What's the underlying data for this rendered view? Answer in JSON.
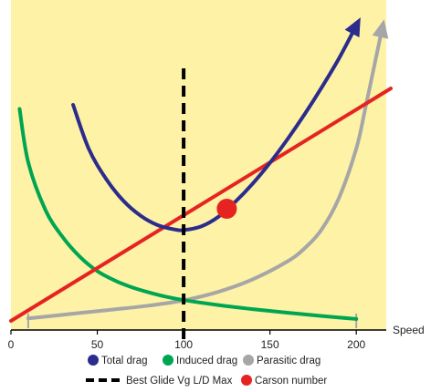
{
  "chart_data": {
    "type": "line",
    "title": "",
    "xlabel": "Speed",
    "ylabel": "",
    "xlim": [
      0,
      220
    ],
    "ylim": [
      0,
      100
    ],
    "x_ticks": [
      0,
      50,
      100,
      150,
      200
    ],
    "grid": false,
    "background": "#fdf2a6",
    "legend_position": "bottom",
    "series": [
      {
        "name": "Total drag",
        "color": "#2b2c8c",
        "arrow_end": true,
        "x": [
          36,
          45,
          55,
          65,
          75,
          85,
          95,
          100,
          110,
          120,
          130,
          140,
          150,
          160,
          170,
          180,
          190,
          200
        ],
        "y": [
          79,
          63,
          52,
          44,
          38.5,
          35,
          33.4,
          33.2,
          34.5,
          38,
          43.6,
          50.2,
          57.8,
          66.3,
          75.5,
          85.4,
          96,
          108
        ]
      },
      {
        "name": "Induced drag",
        "color": "#00a552",
        "x": [
          5,
          10,
          20,
          30,
          40,
          50,
          60,
          70,
          80,
          90,
          100,
          120,
          140,
          160,
          180,
          200
        ],
        "y": [
          77.5,
          58,
          40.5,
          30.6,
          23.4,
          18.2,
          14.8,
          12.3,
          10.4,
          8.8,
          7.6,
          5.8,
          4.3,
          3.0,
          1.8,
          0.7
        ]
      },
      {
        "name": "Parasitic drag",
        "color": "#a6a6a6",
        "arrow_end": true,
        "x": [
          10,
          40,
          60,
          80,
          100,
          120,
          140,
          160,
          170,
          180,
          190,
          200,
          205,
          210,
          215
        ],
        "y": [
          0.9,
          2.9,
          4.2,
          5.6,
          7.5,
          10.6,
          15.2,
          21.7,
          26.5,
          33.5,
          45,
          63,
          77,
          92,
          107
        ]
      },
      {
        "name": "Carson number",
        "color": "#e52421",
        "x": [
          0,
          220
        ],
        "y": [
          0,
          85
        ]
      }
    ],
    "vertical_line": {
      "name": "Best Glide Vg L/D Max",
      "x": 100,
      "style": "dashed",
      "color": "#000000"
    },
    "marker": {
      "name": "Carson number",
      "x": 125,
      "y": 41,
      "color": "#e52421"
    },
    "bracket": {
      "x_start": 10,
      "x_end": 200,
      "color": "#a6a6a6"
    },
    "legend": [
      {
        "label": "Total drag",
        "symbol": "dot",
        "color": "#2b2c8c"
      },
      {
        "label": "Induced drag",
        "symbol": "dot",
        "color": "#00a552"
      },
      {
        "label": "Parasitic drag",
        "symbol": "dot",
        "color": "#a6a6a6"
      },
      {
        "label": "Best Glide Vg L/D Max",
        "symbol": "dash",
        "color": "#000000"
      },
      {
        "label": "Carson number",
        "symbol": "dot",
        "color": "#e52421"
      }
    ]
  }
}
